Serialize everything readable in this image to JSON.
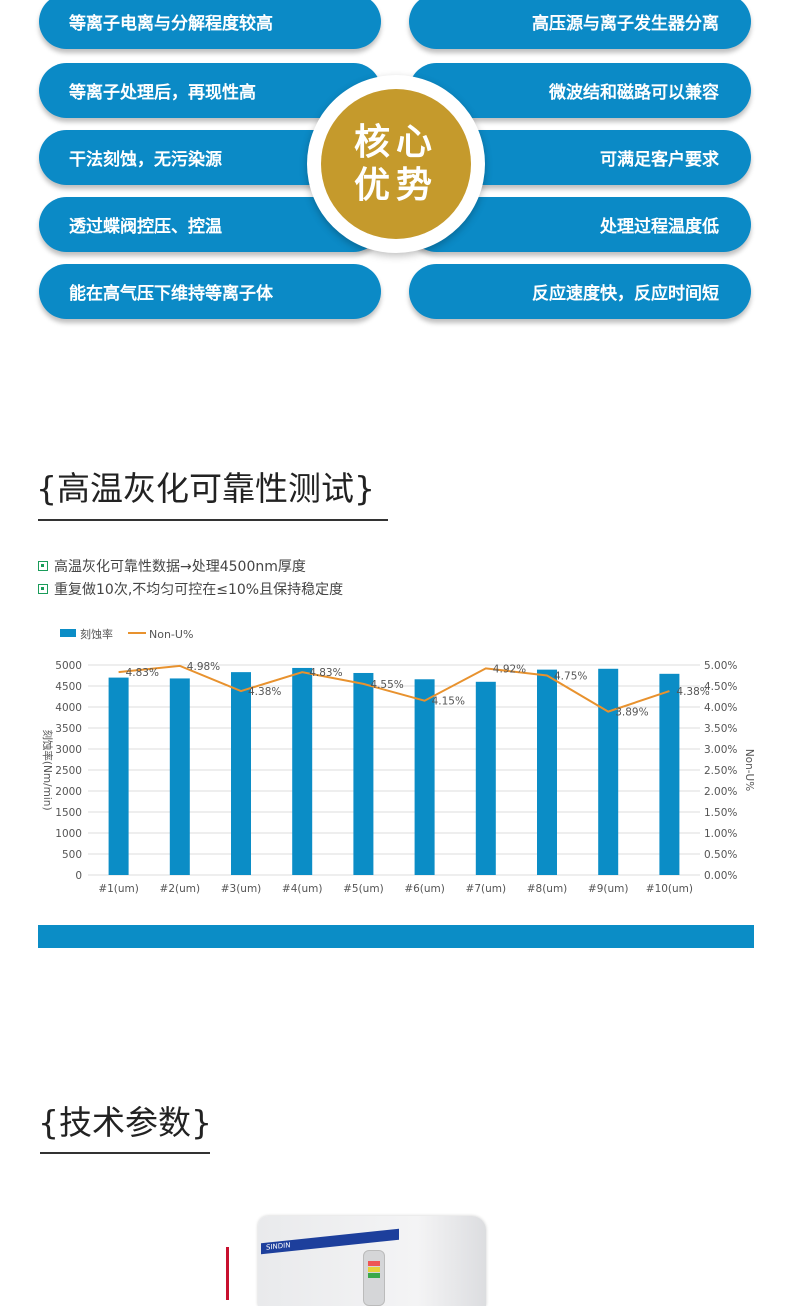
{
  "advantages": {
    "left": [
      "等离子电离与分解程度较高",
      "等离子处理后，再现性高",
      "干法刻蚀，无污染源",
      "透过蝶阀控压、控温",
      "能在高气压下维持等离子体"
    ],
    "right": [
      "高压源与离子发生器分离",
      "微波结和磁路可以兼容",
      "可满足客户要求",
      "处理过程温度低",
      "反应速度快，反应时间短"
    ],
    "badge_line1": "核心",
    "badge_line2": "优势",
    "colors": {
      "pill": "#0b8ac6",
      "badge": "#c59a2c"
    }
  },
  "section1": {
    "title": "{高温灰化可靠性测试}",
    "notes": [
      "高温灰化可靠性数据→处理4500nm厚度",
      "重复做10次,不均匀可控在≤10%且保持稳定度"
    ]
  },
  "chart_data": {
    "type": "bar",
    "categories": [
      "#1(um)",
      "#2(um)",
      "#3(um)",
      "#4(um)",
      "#5(um)",
      "#6(um)",
      "#7(um)",
      "#8(um)",
      "#9(um)",
      "#10(um)"
    ],
    "series": [
      {
        "name": "刻蚀率",
        "type": "bar",
        "axis": "left",
        "color": "#0b8dc6",
        "values": [
          4700,
          4680,
          4830,
          4930,
          4810,
          4660,
          4600,
          4890,
          4910,
          4790
        ]
      },
      {
        "name": "Non-U%",
        "type": "line",
        "axis": "right",
        "color": "#e8922e",
        "values": [
          4.83,
          4.98,
          4.38,
          4.83,
          4.55,
          4.15,
          4.92,
          4.75,
          3.89,
          4.38
        ],
        "labels": [
          "4.83%",
          "4.98%",
          "4.38%",
          "4.83%",
          "4.55%",
          "4.15%",
          "4.92%",
          "4.75%",
          "3.89%",
          "4.38%"
        ]
      }
    ],
    "ylabel": "刻蚀率(Nm/min)",
    "y2label": "Non-U%",
    "ylim": [
      0,
      5000
    ],
    "y2lim": [
      0,
      5
    ],
    "yticks": [
      "0",
      "500",
      "1000",
      "1500",
      "2000",
      "2500",
      "3000",
      "3500",
      "4000",
      "4500",
      "5000"
    ],
    "y2ticks": [
      "0.00%",
      "0.50%",
      "1.00%",
      "1.50%",
      "2.00%",
      "2.50%",
      "3.00%",
      "3.50%",
      "4.00%",
      "4.50%",
      "5.00%"
    ],
    "grid": true,
    "legend": "top-left"
  },
  "section2": {
    "title": "{技术参数}",
    "brand": "SINDIN"
  }
}
